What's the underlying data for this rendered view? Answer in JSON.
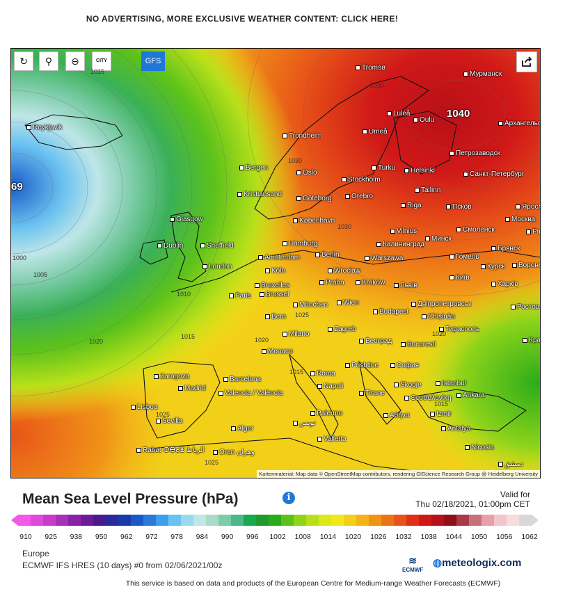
{
  "promo": "NO ADVERTISING, MORE EXCLUSIVE WEATHER CONTENT: CLICK HERE!",
  "toolbar": {
    "refresh_icon": "refresh-icon",
    "location_icon": "map-pin-icon",
    "zoom_icon": "zoom-out-icon",
    "city_label": "CITY",
    "model_button": "GFS",
    "share_icon": "share-icon"
  },
  "map": {
    "high_label": "1040",
    "low_label": "69",
    "attribution": "Kartenmaterial: Map data © OpenStreetMap contributors, rendering GIScience Research Group @ Heidelberg University",
    "isobar_labels": [
      "1015",
      "1030",
      "1030",
      "1000",
      "1005",
      "1010",
      "1015",
      "1020",
      "1020",
      "1025",
      "1030",
      "1015",
      "1020",
      "1025",
      "1025",
      "1015"
    ],
    "cities": [
      "Reykjavik",
      "Tromsø",
      "Мурманск",
      "Luleå",
      "Oulu",
      "Архангельск",
      "Trondheim",
      "Umeå",
      "Петрозаводск",
      "Bergen",
      "Oslo",
      "Turku",
      "Helsinki",
      "Санкт-Петербург",
      "Stockholm",
      "Tallinn",
      "Kristiansand",
      "Göteborg",
      "Orebro",
      "Псков",
      "Ярославль",
      "Glasgow",
      "Riga",
      "Москва",
      "København",
      "Vilnius",
      "Смоленск",
      "Dublin",
      "Sheffield",
      "Hamburg",
      "Калининград",
      "Минск",
      "Рязань",
      "Amsterdam",
      "Berlin",
      "Брянск",
      "London",
      "Köln",
      "Warszawa",
      "Гомель",
      "Курск",
      "Воронеж",
      "Bruxelles",
      "Wrocław",
      "Київ",
      "Харків",
      "Brussel",
      "Praha",
      "Kraków",
      "Львів",
      "Paris",
      "München",
      "Wien",
      "Дніпропетровськ",
      "Ростов",
      "Bern",
      "Budapest",
      "Chișinău",
      "Zagreb",
      "Тирасполь",
      "Milano",
      "Београд",
      "Bucuresti",
      "Краснодар",
      "Monaco",
      "Prishtine",
      "София",
      "Zaragoza",
      "Barcelona",
      "Roma",
      "Istanbul",
      "Madrid",
      "Napoli",
      "Skopje",
      "Valencia / València",
      "Tirane",
      "Θεσσαλονίκη",
      "Ankara",
      "Lisboa",
      "Sevilla",
      "Αθήνα",
      "Izmir",
      "Alger",
      "تونس",
      "Palermo",
      "Antalya",
      "Valletta",
      "Nicosia",
      "Rabat ⵔⴱⴰⵟ الرباط",
      "Oran وهران",
      "دمشق"
    ]
  },
  "legend": {
    "title": "Mean Sea Level Pressure (hPa)",
    "valid_for": "Valid for",
    "valid_time": "Thu 02/18/2021, 01:00pm CET",
    "ticks": [
      "910",
      "925",
      "938",
      "950",
      "962",
      "972",
      "978",
      "984",
      "990",
      "996",
      "1002",
      "1008",
      "1014",
      "1020",
      "1026",
      "1032",
      "1038",
      "1044",
      "1050",
      "1056",
      "1062"
    ],
    "colors": [
      "#f25ae6",
      "#e04ad8",
      "#c83ccc",
      "#a830b8",
      "#8a22a8",
      "#6a1a9a",
      "#4a1a8a",
      "#2a2a9a",
      "#1a3aa8",
      "#1a5ac8",
      "#2a7ad8",
      "#3aa0e8",
      "#6ac2f0",
      "#9ad8f0",
      "#bfe6e8",
      "#a8dcc8",
      "#7ccca8",
      "#4ab888",
      "#1aa850",
      "#1e9a2e",
      "#2aab1a",
      "#5cc21a",
      "#8ed41a",
      "#b8e01a",
      "#dce818",
      "#f2e818",
      "#f2d018",
      "#f2b418",
      "#f09418",
      "#ec7418",
      "#e85418",
      "#e03018",
      "#d01818",
      "#b81018",
      "#901018",
      "#a83a48",
      "#c8707a",
      "#e8a0a8",
      "#f4c4cc",
      "#f8dcdc",
      "#d8d8d8"
    ]
  },
  "meta": {
    "region": "Europe",
    "model_run": "ECMWF IFS HRES (10 days) #0 from 02/06/2021/00z",
    "ecmwf_label": "ECMWF",
    "brand": "meteologix.com",
    "footer": "This service is based on data and products of the European Centre for Medium-range Weather Forecasts (ECMWF)"
  }
}
